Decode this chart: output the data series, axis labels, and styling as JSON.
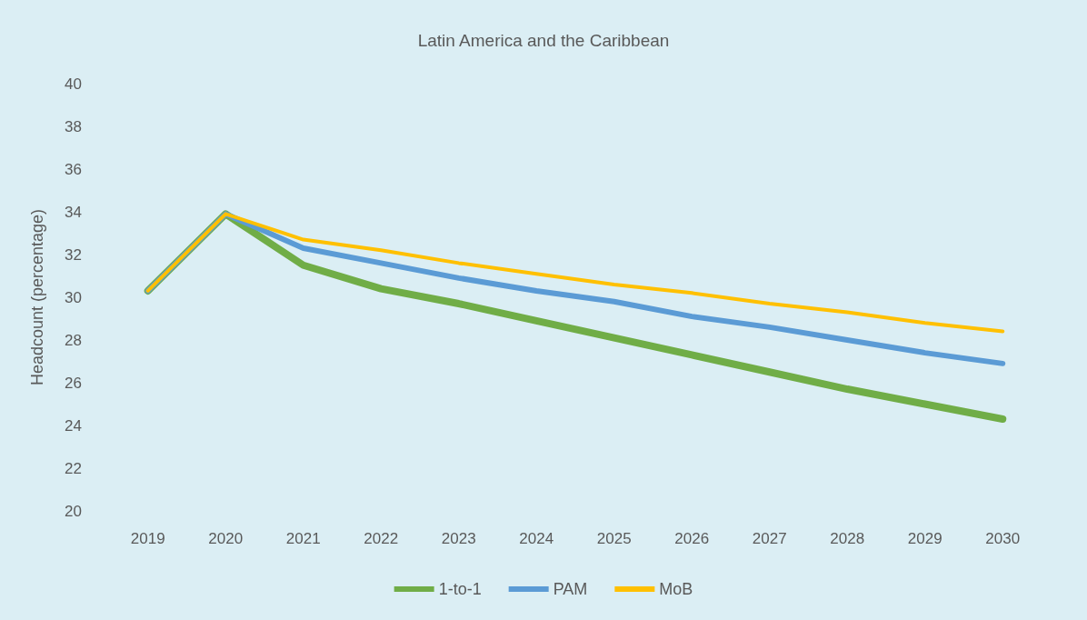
{
  "chart_data": {
    "type": "line",
    "title": "Latin America and the Caribbean",
    "ylabel": "Headcount (percentage)",
    "categories": [
      "2019",
      "2020",
      "2021",
      "2022",
      "2023",
      "2024",
      "2025",
      "2026",
      "2027",
      "2028",
      "2029",
      "2030"
    ],
    "series": [
      {
        "name": "1-to-1",
        "color": "#70ad47",
        "values": [
          30.3,
          33.9,
          31.5,
          30.4,
          29.7,
          28.9,
          28.1,
          27.3,
          26.5,
          25.7,
          25.0,
          24.3
        ]
      },
      {
        "name": "PAM",
        "color": "#5b9bd5",
        "values": [
          30.3,
          33.9,
          32.3,
          31.6,
          30.9,
          30.3,
          29.8,
          29.1,
          28.6,
          28.0,
          27.4,
          26.9
        ]
      },
      {
        "name": "MoB",
        "color": "#ffc000",
        "values": [
          30.3,
          33.9,
          32.7,
          32.2,
          31.6,
          31.1,
          30.6,
          30.2,
          29.7,
          29.3,
          28.8,
          28.4
        ]
      }
    ],
    "ylim": [
      20,
      40
    ],
    "yticks": [
      20,
      22,
      24,
      26,
      28,
      30,
      32,
      34,
      36,
      38,
      40
    ],
    "grid": false,
    "legend": "bottom",
    "marker": "none",
    "line_style": "solid"
  }
}
